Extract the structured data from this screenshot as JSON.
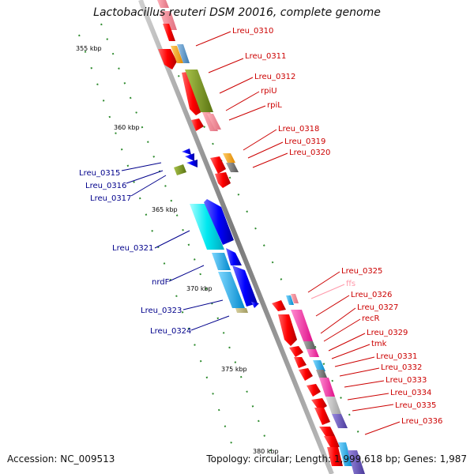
{
  "title": "Lactobacillus reuteri DSM 20016, complete genome",
  "footer": {
    "accession": "Accession: NC_009513",
    "summary": "Topology: circular; Length: 1,999,618 bp; Genes: 1,987"
  },
  "colors": {
    "forward_label": "#cc0000",
    "reverse_label": "#00008b",
    "rna_label": "#ff99aa",
    "backbone": "#888888"
  },
  "scale": {
    "ticks": [
      {
        "label": "355 kbp"
      },
      {
        "label": "360 kbp"
      },
      {
        "label": "365 kbp"
      },
      {
        "label": "370 kbp"
      },
      {
        "label": "375 kbp"
      },
      {
        "label": "380 kbp"
      }
    ]
  },
  "genes_right": [
    {
      "label": "Lreu_0310"
    },
    {
      "label": "Lreu_0311"
    },
    {
      "label": "Lreu_0312"
    },
    {
      "label": "rpiU"
    },
    {
      "label": "rpiL"
    },
    {
      "label": "Lreu_0318"
    },
    {
      "label": "Lreu_0319"
    },
    {
      "label": "Lreu_0320"
    },
    {
      "label": "Lreu_0325"
    },
    {
      "label": "ffs"
    },
    {
      "label": "Lreu_0326"
    },
    {
      "label": "Lreu_0327"
    },
    {
      "label": "recR"
    },
    {
      "label": "Lreu_0329"
    },
    {
      "label": "tmk"
    },
    {
      "label": "Lreu_0331"
    },
    {
      "label": "Lreu_0332"
    },
    {
      "label": "Lreu_0333"
    },
    {
      "label": "Lreu_0334"
    },
    {
      "label": "Lreu_0335"
    },
    {
      "label": "Lreu_0336"
    }
  ],
  "genes_left": [
    {
      "label": "Lreu_0315"
    },
    {
      "label": "Lreu_0316"
    },
    {
      "label": "Lreu_0317"
    },
    {
      "label": "Lreu_0321"
    },
    {
      "label": "nrdF"
    },
    {
      "label": "Lreu_0323"
    },
    {
      "label": "Lreu_0324"
    }
  ]
}
